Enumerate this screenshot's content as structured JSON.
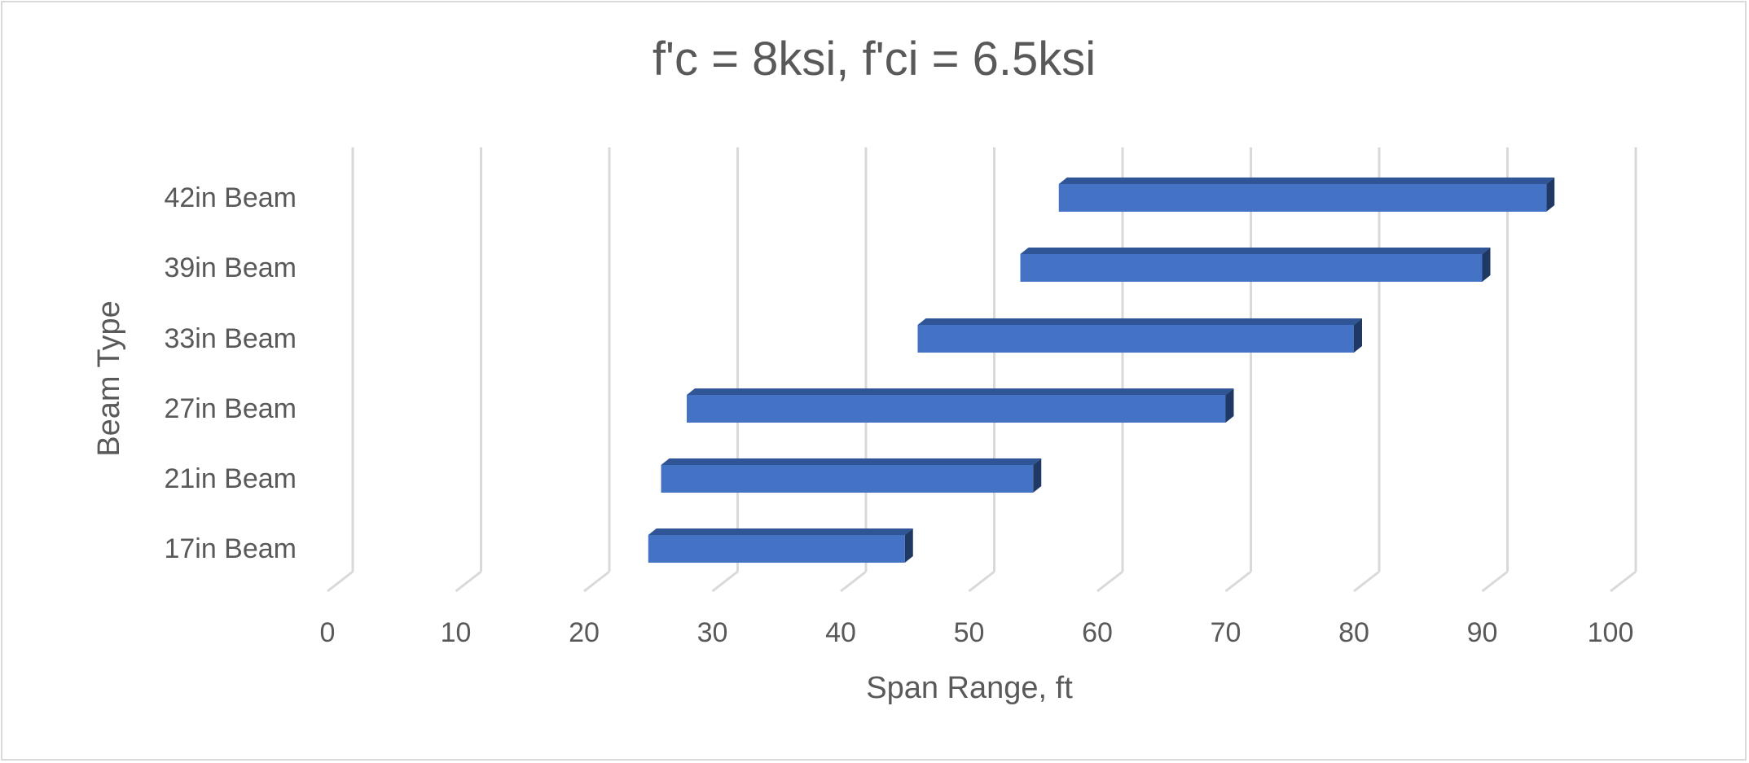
{
  "chart_data": {
    "type": "bar",
    "orientation": "horizontal",
    "style": "3d-floating-range",
    "title": "f'c = 8ksi, f'ci = 6.5ksi",
    "xlabel": "Span Range, ft",
    "ylabel": "Beam Type",
    "xlim": [
      0,
      100
    ],
    "x_ticks": [
      0,
      10,
      20,
      30,
      40,
      50,
      60,
      70,
      80,
      90,
      100
    ],
    "grid": true,
    "categories": [
      "17in Beam",
      "21in Beam",
      "27in Beam",
      "33in Beam",
      "39in Beam",
      "42in Beam"
    ],
    "ranges": [
      {
        "start": 25,
        "end": 45
      },
      {
        "start": 26,
        "end": 55
      },
      {
        "start": 28,
        "end": 70
      },
      {
        "start": 46,
        "end": 80
      },
      {
        "start": 54,
        "end": 90
      },
      {
        "start": 57,
        "end": 95
      }
    ],
    "colors": {
      "bar_front": "#4472c4",
      "bar_top": "#2f5597",
      "bar_side": "#203864",
      "grid": "#d9d9d9",
      "text": "#595959"
    }
  }
}
